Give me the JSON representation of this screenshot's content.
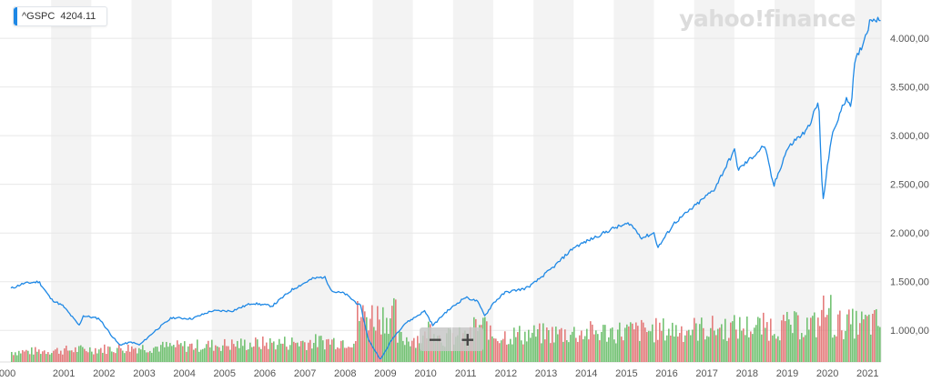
{
  "legend": {
    "symbol": "^GSPC",
    "last_value": "4204.11"
  },
  "brand": "yahoo!finance",
  "zoom": {
    "out_label": "−",
    "in_label": "+"
  },
  "colors": {
    "line": "#1e88e5",
    "vol_up": "#5cb85c",
    "vol_down": "#e06666",
    "band": "#f3f3f3"
  },
  "chart_data": {
    "type": "line",
    "series": [
      {
        "name": "^GSPC",
        "x": [
          2000.0,
          2000.3,
          2000.7,
          2001.0,
          2001.3,
          2001.7,
          2001.8,
          2002.2,
          2002.5,
          2002.7,
          2003.0,
          2003.2,
          2003.6,
          2004.0,
          2004.5,
          2005.0,
          2005.5,
          2006.0,
          2006.5,
          2007.0,
          2007.5,
          2007.8,
          2008.0,
          2008.3,
          2008.7,
          2008.9,
          2009.2,
          2009.5,
          2009.8,
          2010.0,
          2010.3,
          2010.5,
          2010.8,
          2011.3,
          2011.6,
          2011.8,
          2012.0,
          2012.3,
          2012.8,
          2013.0,
          2013.5,
          2014.0,
          2014.5,
          2015.0,
          2015.4,
          2015.7,
          2016.0,
          2016.1,
          2016.5,
          2017.0,
          2017.5,
          2018.0,
          2018.1,
          2018.5,
          2018.75,
          2018.98,
          2019.3,
          2019.5,
          2019.8,
          2020.1,
          2020.2,
          2020.4,
          2020.6,
          2020.8,
          2020.9,
          2021.0,
          2021.2,
          2021.4
        ],
        "y": [
          1430,
          1480,
          1500,
          1320,
          1250,
          1050,
          1150,
          1120,
          950,
          850,
          880,
          850,
          1000,
          1130,
          1120,
          1200,
          1200,
          1280,
          1250,
          1420,
          1530,
          1550,
          1400,
          1380,
          1250,
          900,
          700,
          920,
          1070,
          1120,
          1200,
          1050,
          1180,
          1340,
          1300,
          1150,
          1280,
          1390,
          1430,
          1480,
          1650,
          1850,
          1950,
          2050,
          2100,
          1950,
          2000,
          1850,
          2100,
          2270,
          2450,
          2850,
          2650,
          2800,
          2900,
          2480,
          2850,
          2950,
          3050,
          3350,
          2300,
          2950,
          3200,
          3400,
          3300,
          3750,
          3950,
          4204
        ]
      }
    ],
    "xlim": [
      2000.0,
      2021.65
    ],
    "ylim": [
      750,
      4300
    ],
    "y_ticks": [
      "1.000,00",
      "1.500,00",
      "2.000,00",
      "2.500,00",
      "3.000,00",
      "3.500,00",
      "4.000,00"
    ],
    "y_tick_values": [
      1000,
      1500,
      2000,
      2500,
      3000,
      3500,
      4000
    ],
    "x_ticks": [
      "000",
      "2001",
      "2002",
      "2003",
      "2004",
      "2005",
      "2006",
      "2007",
      "2008",
      "2009",
      "2010",
      "2011",
      "2012",
      "2013",
      "2014",
      "2015",
      "2016",
      "2017",
      "2018",
      "2019",
      "2020",
      "2021"
    ],
    "x_tick_values": [
      2000,
      2001,
      2002,
      2003,
      2004,
      2005,
      2006,
      2007,
      2008,
      2009,
      2010,
      2011,
      2012,
      2013,
      2014,
      2015,
      2016,
      2017,
      2018,
      2019,
      2020,
      2021
    ],
    "grid": "horizontal",
    "alternating_year_bands": true,
    "volume_bars": true,
    "legend_position": "top-left"
  }
}
